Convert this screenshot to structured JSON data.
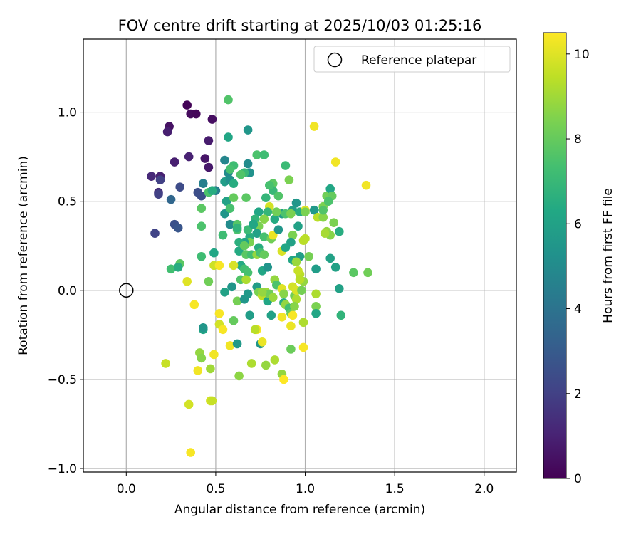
{
  "chart_data": {
    "type": "scatter",
    "title": "FOV centre drift starting at 2025/10/03 01:25:16",
    "xlabel": "Angular distance from reference (arcmin)",
    "ylabel": "Rotation from reference (arcmin)",
    "xlim": [
      -0.24,
      2.18
    ],
    "ylim": [
      -1.02,
      1.41
    ],
    "xticks": [
      0.0,
      0.5,
      1.0,
      1.5,
      2.0
    ],
    "xtick_labels": [
      "0.0",
      "0.5",
      "1.0",
      "1.5",
      "2.0"
    ],
    "yticks": [
      -1.0,
      -0.5,
      0.0,
      0.5,
      1.0
    ],
    "ytick_labels": [
      "−1.0",
      "−0.5",
      "0.0",
      "0.5",
      "1.0"
    ],
    "grid": true,
    "legend": {
      "position": "top-right",
      "label": "Reference platepar"
    },
    "reference_point": {
      "x": 0.0,
      "y": 0.0
    },
    "colorbar": {
      "label": "Hours from first FF file",
      "range": [
        0,
        10.5
      ],
      "ticks": [
        0,
        2,
        4,
        6,
        8,
        10
      ],
      "tick_labels": [
        "0",
        "2",
        "4",
        "6",
        "8",
        "10"
      ],
      "colormap": "viridis"
    },
    "points": [
      [
        0.34,
        1.04,
        0.1
      ],
      [
        0.36,
        0.99,
        0.3
      ],
      [
        0.39,
        0.99,
        0.2
      ],
      [
        0.48,
        0.96,
        0.4
      ],
      [
        0.24,
        0.92,
        0.5
      ],
      [
        0.23,
        0.89,
        0.9
      ],
      [
        0.46,
        0.84,
        0.8
      ],
      [
        0.35,
        0.75,
        1.0
      ],
      [
        0.44,
        0.74,
        0.6
      ],
      [
        0.27,
        0.72,
        0.9
      ],
      [
        0.46,
        0.69,
        0.7
      ],
      [
        0.14,
        0.64,
        1.2
      ],
      [
        0.19,
        0.64,
        1.0
      ],
      [
        0.19,
        0.62,
        2.0
      ],
      [
        0.18,
        0.55,
        1.3
      ],
      [
        0.18,
        0.54,
        2.0
      ],
      [
        0.3,
        0.58,
        2.4
      ],
      [
        0.4,
        0.55,
        2.5
      ],
      [
        0.42,
        0.53,
        2.5
      ],
      [
        0.25,
        0.51,
        3.5
      ],
      [
        0.27,
        0.37,
        2.6
      ],
      [
        0.29,
        0.35,
        2.8
      ],
      [
        0.16,
        0.32,
        2.1
      ],
      [
        0.43,
        0.6,
        4.5
      ],
      [
        0.5,
        0.56,
        4.5
      ],
      [
        0.55,
        0.73,
        4.8
      ],
      [
        0.57,
        0.66,
        5.0
      ],
      [
        0.55,
        0.61,
        5.8
      ],
      [
        0.58,
        0.62,
        5.2
      ],
      [
        0.6,
        0.6,
        6.5
      ],
      [
        0.56,
        0.5,
        6.0
      ],
      [
        0.55,
        0.43,
        5.5
      ],
      [
        0.58,
        0.37,
        5.0
      ],
      [
        0.57,
        0.86,
        6.2
      ],
      [
        0.68,
        0.9,
        5.5
      ],
      [
        0.68,
        0.71,
        5.0
      ],
      [
        0.69,
        0.66,
        5.3
      ],
      [
        0.66,
        0.66,
        7.0
      ],
      [
        0.6,
        0.7,
        7.2
      ],
      [
        0.58,
        0.68,
        7.4
      ],
      [
        0.57,
        1.07,
        7.6
      ],
      [
        0.73,
        0.76,
        7.5
      ],
      [
        0.77,
        0.76,
        7.2
      ],
      [
        0.82,
        0.6,
        7.8
      ],
      [
        0.82,
        0.56,
        7.0
      ],
      [
        0.78,
        0.52,
        6.9
      ],
      [
        0.85,
        0.53,
        7.6
      ],
      [
        0.89,
        0.7,
        7.1
      ],
      [
        0.91,
        0.62,
        8.4
      ],
      [
        0.95,
        0.49,
        5.5
      ],
      [
        0.93,
        0.45,
        5.8
      ],
      [
        0.97,
        0.44,
        6.5
      ],
      [
        1.0,
        0.45,
        10.0
      ],
      [
        1.05,
        0.45,
        5.6
      ],
      [
        1.1,
        0.47,
        8.4
      ],
      [
        1.12,
        0.53,
        8.2
      ],
      [
        1.14,
        0.57,
        6.2
      ],
      [
        1.15,
        0.53,
        8.0
      ],
      [
        1.13,
        0.5,
        7.5
      ],
      [
        1.05,
        0.92,
        10.3
      ],
      [
        1.17,
        0.72,
        10.3
      ],
      [
        1.34,
        0.59,
        10.3
      ],
      [
        1.19,
        0.33,
        6.5
      ],
      [
        1.16,
        0.38,
        8.4
      ],
      [
        1.12,
        0.33,
        8.8
      ],
      [
        1.14,
        0.31,
        8.6
      ],
      [
        1.14,
        0.18,
        6.0
      ],
      [
        1.17,
        0.13,
        6.0
      ],
      [
        1.27,
        0.1,
        7.8
      ],
      [
        1.35,
        0.1,
        8.2
      ],
      [
        1.19,
        0.01,
        6.0
      ],
      [
        1.2,
        -0.14,
        6.8
      ],
      [
        1.06,
        0.12,
        5.8
      ],
      [
        1.06,
        -0.02,
        9.2
      ],
      [
        1.06,
        -0.09,
        8.4
      ],
      [
        1.06,
        -0.13,
        6.2
      ],
      [
        1.02,
        0.19,
        8.3
      ],
      [
        1.0,
        0.29,
        9.4
      ],
      [
        0.96,
        0.36,
        6.0
      ],
      [
        0.99,
        0.28,
        9.4
      ],
      [
        0.93,
        0.31,
        8.4
      ],
      [
        0.97,
        0.19,
        5.8
      ],
      [
        0.93,
        0.17,
        6.2
      ],
      [
        0.92,
        0.27,
        6.0
      ],
      [
        0.87,
        0.43,
        5.8
      ],
      [
        0.83,
        0.4,
        6.4
      ],
      [
        0.84,
        0.44,
        7.5
      ],
      [
        0.8,
        0.47,
        9.8
      ],
      [
        0.79,
        0.44,
        6.9
      ],
      [
        0.77,
        0.4,
        8.6
      ],
      [
        0.74,
        0.44,
        6.2
      ],
      [
        0.72,
        0.4,
        6.8
      ],
      [
        0.74,
        0.36,
        8.4
      ],
      [
        0.73,
        0.32,
        6.0
      ],
      [
        0.71,
        0.37,
        5.3
      ],
      [
        0.69,
        0.3,
        6.5
      ],
      [
        0.69,
        0.27,
        8.4
      ],
      [
        0.68,
        0.34,
        7.1
      ],
      [
        0.66,
        0.27,
        6.1
      ],
      [
        0.62,
        0.37,
        7.7
      ],
      [
        0.62,
        0.34,
        7.5
      ],
      [
        0.63,
        0.27,
        6.6
      ],
      [
        0.63,
        0.22,
        6.4
      ],
      [
        0.66,
        0.25,
        8.0
      ],
      [
        0.67,
        0.2,
        7.8
      ],
      [
        0.7,
        0.2,
        7.3
      ],
      [
        0.73,
        0.2,
        8.8
      ],
      [
        0.74,
        0.24,
        6.5
      ],
      [
        0.75,
        0.21,
        7.4
      ],
      [
        0.77,
        0.2,
        8.0
      ],
      [
        0.77,
        0.3,
        7.4
      ],
      [
        0.81,
        0.29,
        8.2
      ],
      [
        0.82,
        0.31,
        10.2
      ],
      [
        0.85,
        0.34,
        5.5
      ],
      [
        0.87,
        0.22,
        9.9
      ],
      [
        0.89,
        0.24,
        6.2
      ],
      [
        0.76,
        0.11,
        6.2
      ],
      [
        0.64,
        0.14,
        6.4
      ],
      [
        0.66,
        0.12,
        7.3
      ],
      [
        0.68,
        0.1,
        7.4
      ],
      [
        0.64,
        0.06,
        7.6
      ],
      [
        0.6,
        0.14,
        9.9
      ],
      [
        0.67,
        0.06,
        9.2
      ],
      [
        0.62,
        -0.06,
        8.3
      ],
      [
        0.59,
        0.02,
        5.5
      ],
      [
        0.66,
        -0.05,
        5.5
      ],
      [
        0.68,
        -0.02,
        5.6
      ],
      [
        0.69,
        -0.14,
        5.8
      ],
      [
        0.73,
        0.02,
        5.8
      ],
      [
        0.74,
        -0.01,
        8.4
      ],
      [
        0.76,
        -0.03,
        9.5
      ],
      [
        0.78,
        -0.01,
        9.0
      ],
      [
        0.79,
        -0.06,
        6.2
      ],
      [
        0.8,
        -0.02,
        8.2
      ],
      [
        0.82,
        -0.04,
        8.9
      ],
      [
        0.83,
        0.06,
        8.8
      ],
      [
        0.84,
        0.03,
        7.5
      ],
      [
        0.87,
        0.01,
        10.0
      ],
      [
        0.88,
        -0.07,
        6.5
      ],
      [
        0.89,
        -0.08,
        8.8
      ],
      [
        0.91,
        -0.1,
        7.3
      ],
      [
        0.92,
        -0.13,
        8.0
      ],
      [
        0.94,
        -0.03,
        8.2
      ],
      [
        0.95,
        -0.05,
        9.2
      ],
      [
        0.94,
        -0.09,
        8.6
      ],
      [
        0.93,
        0.02,
        9.8
      ],
      [
        0.95,
        0.0,
        9.9
      ],
      [
        0.97,
        0.09,
        9.4
      ],
      [
        0.99,
        0.05,
        8.8
      ],
      [
        0.98,
        0.0,
        8.3
      ],
      [
        0.81,
        -0.14,
        6.0
      ],
      [
        0.87,
        -0.15,
        10.3
      ],
      [
        0.93,
        -0.14,
        10.4
      ],
      [
        0.92,
        -0.2,
        10.2
      ],
      [
        0.99,
        -0.18,
        9.2
      ],
      [
        0.6,
        -0.17,
        8.0
      ],
      [
        0.73,
        -0.22,
        10.4
      ],
      [
        0.72,
        -0.22,
        9.4
      ],
      [
        0.75,
        -0.3,
        5.5
      ],
      [
        0.76,
        -0.29,
        10.2
      ],
      [
        0.58,
        -0.31,
        10.3
      ],
      [
        0.62,
        -0.3,
        5.6
      ],
      [
        0.52,
        -0.13,
        10.4
      ],
      [
        0.52,
        -0.19,
        9.8
      ],
      [
        0.54,
        -0.22,
        10.4
      ],
      [
        0.43,
        -0.22,
        6.2
      ],
      [
        0.41,
        -0.35,
        8.8
      ],
      [
        0.49,
        -0.36,
        10.3
      ],
      [
        0.42,
        -0.38,
        8.6
      ],
      [
        0.47,
        -0.44,
        9.0
      ],
      [
        0.4,
        -0.45,
        10.3
      ],
      [
        0.22,
        -0.41,
        9.6
      ],
      [
        0.63,
        -0.48,
        8.7
      ],
      [
        0.7,
        -0.41,
        9.2
      ],
      [
        0.78,
        -0.42,
        8.8
      ],
      [
        0.83,
        -0.39,
        9.2
      ],
      [
        0.92,
        -0.33,
        8.1
      ],
      [
        0.99,
        -0.32,
        10.4
      ],
      [
        0.87,
        -0.47,
        8.8
      ],
      [
        0.88,
        -0.5,
        10.5
      ],
      [
        0.47,
        -0.62,
        9.8
      ],
      [
        0.48,
        -0.62,
        9.6
      ],
      [
        0.35,
        -0.64,
        9.8
      ],
      [
        0.36,
        -0.91,
        10.4
      ],
      [
        0.34,
        0.05,
        10.0
      ],
      [
        0.38,
        -0.08,
        10.4
      ],
      [
        0.46,
        0.05,
        8.2
      ],
      [
        0.49,
        0.14,
        9.7
      ],
      [
        0.52,
        0.14,
        10.4
      ],
      [
        0.42,
        0.19,
        7.2
      ],
      [
        0.49,
        0.21,
        6.2
      ],
      [
        0.25,
        0.12,
        7.3
      ],
      [
        0.3,
        0.15,
        7.8
      ],
      [
        0.29,
        0.13,
        6.5
      ],
      [
        0.42,
        0.36,
        7.5
      ],
      [
        0.42,
        0.46,
        7.8
      ],
      [
        0.46,
        0.55,
        7.5
      ],
      [
        0.48,
        0.56,
        6.5
      ],
      [
        0.54,
        0.31,
        7.2
      ],
      [
        0.58,
        0.46,
        7.4
      ],
      [
        0.6,
        0.52,
        8.0
      ],
      [
        0.62,
        0.35,
        6.8
      ],
      [
        0.64,
        0.65,
        7.6
      ],
      [
        0.67,
        0.52,
        7.8
      ],
      [
        0.71,
        0.37,
        6.2
      ],
      [
        0.8,
        0.59,
        7.4
      ],
      [
        0.84,
        0.44,
        8.2
      ],
      [
        0.89,
        0.43,
        7.5
      ],
      [
        0.92,
        0.43,
        8.4
      ],
      [
        1.0,
        0.44,
        8.4
      ],
      [
        1.07,
        0.41,
        9.4
      ],
      [
        1.1,
        0.41,
        8.6
      ],
      [
        1.1,
        0.45,
        7.6
      ],
      [
        1.11,
        0.32,
        9.1
      ],
      [
        0.55,
        -0.01,
        6.0
      ],
      [
        0.43,
        -0.21,
        5.5
      ],
      [
        0.76,
        -0.01,
        8.8
      ],
      [
        0.88,
        -0.02,
        8.6
      ],
      [
        0.97,
        0.06,
        9.4
      ],
      [
        0.96,
        0.11,
        9.6
      ],
      [
        0.95,
        0.16,
        8.9
      ],
      [
        0.79,
        0.13,
        5.4
      ]
    ]
  }
}
